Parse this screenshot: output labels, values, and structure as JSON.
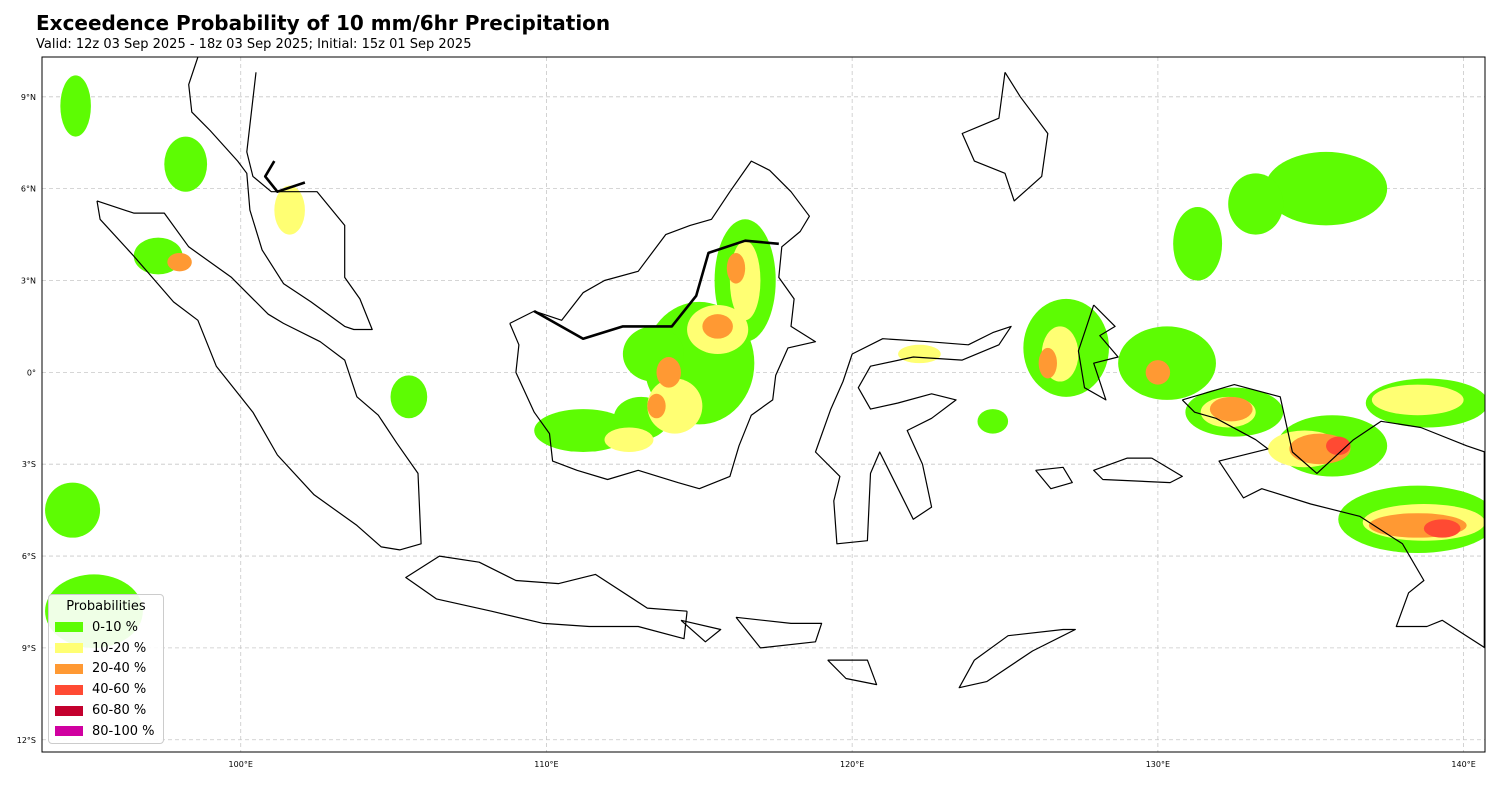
{
  "title": "Exceedence Probability of 10 mm/6hr Precipitation",
  "subtitle": "Valid: 12z 03 Sep 2025 - 18z 03 Sep 2025; Initial: 15z 01 Sep 2025",
  "map": {
    "extent": {
      "lon_min": 93.5,
      "lon_max": 140.7,
      "lat_min": -12.4,
      "lat_max": 10.3
    },
    "grid": true,
    "lat_ticks": [
      {
        "value": 9,
        "label": "9°N"
      },
      {
        "value": 6,
        "label": "6°N"
      },
      {
        "value": 3,
        "label": "3°N"
      },
      {
        "value": 0,
        "label": "0°"
      },
      {
        "value": -3,
        "label": "3°S"
      },
      {
        "value": -6,
        "label": "6°S"
      },
      {
        "value": -9,
        "label": "9°S"
      },
      {
        "value": -12,
        "label": "12°S"
      }
    ],
    "lon_ticks": [
      {
        "value": 100,
        "label": "100°E"
      },
      {
        "value": 110,
        "label": "110°E"
      },
      {
        "value": 120,
        "label": "120°E"
      },
      {
        "value": 130,
        "label": "130°E"
      },
      {
        "value": 140,
        "label": "140°E"
      }
    ],
    "coastlines": [
      [
        [
          95.3,
          5.6
        ],
        [
          96.5,
          5.2
        ],
        [
          97.5,
          5.2
        ],
        [
          98.3,
          4.1
        ],
        [
          99.7,
          3.1
        ],
        [
          100.9,
          1.9
        ],
        [
          101.4,
          1.6
        ],
        [
          102.6,
          1.0
        ],
        [
          103.4,
          0.4
        ],
        [
          103.8,
          -0.8
        ],
        [
          104.5,
          -1.4
        ],
        [
          105.1,
          -2.3
        ],
        [
          105.8,
          -3.3
        ],
        [
          105.9,
          -5.6
        ],
        [
          105.2,
          -5.8
        ],
        [
          104.6,
          -5.7
        ],
        [
          103.8,
          -5.0
        ],
        [
          102.4,
          -4.0
        ],
        [
          101.2,
          -2.7
        ],
        [
          100.4,
          -1.3
        ],
        [
          99.2,
          0.2
        ],
        [
          98.6,
          1.7
        ],
        [
          97.8,
          2.3
        ],
        [
          96.5,
          3.8
        ],
        [
          95.4,
          5.0
        ],
        [
          95.3,
          5.6
        ]
      ],
      [
        [
          100.5,
          9.8
        ],
        [
          100.2,
          7.2
        ],
        [
          100.4,
          6.4
        ],
        [
          101.0,
          5.9
        ],
        [
          101.7,
          5.9
        ],
        [
          102.5,
          5.9
        ],
        [
          103.4,
          4.8
        ],
        [
          103.4,
          3.1
        ],
        [
          103.9,
          2.4
        ],
        [
          104.3,
          1.4
        ],
        [
          103.7,
          1.4
        ],
        [
          103.4,
          1.5
        ],
        [
          102.3,
          2.3
        ],
        [
          101.4,
          2.9
        ],
        [
          100.7,
          4.0
        ],
        [
          100.3,
          5.3
        ],
        [
          100.2,
          6.5
        ],
        [
          99.9,
          6.9
        ],
        [
          99.0,
          7.9
        ],
        [
          98.4,
          8.5
        ],
        [
          98.3,
          9.4
        ],
        [
          98.6,
          10.3
        ]
      ],
      [
        [
          108.8,
          1.6
        ],
        [
          109.6,
          2.0
        ],
        [
          110.5,
          1.7
        ],
        [
          111.2,
          2.6
        ],
        [
          111.9,
          3.0
        ],
        [
          113.0,
          3.3
        ],
        [
          113.9,
          4.5
        ],
        [
          114.7,
          4.8
        ],
        [
          115.4,
          5.0
        ],
        [
          116.0,
          5.9
        ],
        [
          116.7,
          6.9
        ],
        [
          117.3,
          6.6
        ],
        [
          118.0,
          5.9
        ],
        [
          118.6,
          5.1
        ],
        [
          118.3,
          4.6
        ],
        [
          117.7,
          4.1
        ],
        [
          117.6,
          3.1
        ],
        [
          118.1,
          2.4
        ],
        [
          118.0,
          1.5
        ],
        [
          118.8,
          1.0
        ],
        [
          117.9,
          0.8
        ],
        [
          117.5,
          -0.1
        ],
        [
          117.4,
          -0.9
        ],
        [
          116.7,
          -1.4
        ],
        [
          116.3,
          -2.4
        ],
        [
          116.0,
          -3.4
        ],
        [
          115.0,
          -3.8
        ],
        [
          114.3,
          -3.6
        ],
        [
          113.0,
          -3.2
        ],
        [
          112.0,
          -3.5
        ],
        [
          111.0,
          -3.2
        ],
        [
          110.2,
          -2.9
        ],
        [
          110.1,
          -2.0
        ],
        [
          109.6,
          -1.3
        ],
        [
          109.0,
          0.0
        ],
        [
          109.1,
          0.9
        ],
        [
          108.8,
          1.6
        ]
      ],
      [
        [
          120.0,
          0.6
        ],
        [
          121.0,
          1.1
        ],
        [
          122.5,
          1.0
        ],
        [
          123.8,
          0.9
        ],
        [
          124.6,
          1.3
        ],
        [
          125.2,
          1.5
        ],
        [
          124.8,
          0.9
        ],
        [
          123.6,
          0.4
        ],
        [
          122.0,
          0.5
        ],
        [
          120.6,
          0.2
        ],
        [
          120.2,
          -0.5
        ],
        [
          120.6,
          -1.2
        ],
        [
          121.5,
          -1.0
        ],
        [
          122.6,
          -0.7
        ],
        [
          123.4,
          -0.9
        ],
        [
          122.6,
          -1.5
        ],
        [
          121.8,
          -1.9
        ],
        [
          122.3,
          -3.0
        ],
        [
          122.6,
          -4.4
        ],
        [
          122.0,
          -4.8
        ],
        [
          121.6,
          -4.0
        ],
        [
          121.1,
          -3.0
        ],
        [
          120.9,
          -2.6
        ],
        [
          120.6,
          -3.3
        ],
        [
          120.5,
          -5.5
        ],
        [
          119.5,
          -5.6
        ],
        [
          119.4,
          -4.2
        ],
        [
          119.6,
          -3.4
        ],
        [
          118.8,
          -2.6
        ],
        [
          119.3,
          -1.2
        ],
        [
          119.7,
          -0.3
        ],
        [
          120.0,
          0.6
        ]
      ],
      [
        [
          114.6,
          -7.8
        ],
        [
          113.3,
          -7.7
        ],
        [
          111.6,
          -6.6
        ],
        [
          110.4,
          -6.9
        ],
        [
          109.0,
          -6.8
        ],
        [
          107.8,
          -6.2
        ],
        [
          106.5,
          -6.0
        ],
        [
          105.4,
          -6.7
        ],
        [
          106.4,
          -7.4
        ],
        [
          108.2,
          -7.8
        ],
        [
          109.9,
          -8.2
        ],
        [
          111.4,
          -8.3
        ],
        [
          113.0,
          -8.3
        ],
        [
          114.5,
          -8.7
        ],
        [
          114.6,
          -7.8
        ]
      ],
      [
        [
          130.8,
          -0.9
        ],
        [
          132.5,
          -0.4
        ],
        [
          134.0,
          -0.8
        ],
        [
          134.4,
          -2.6
        ],
        [
          135.2,
          -3.3
        ],
        [
          136.4,
          -2.2
        ],
        [
          137.3,
          -1.6
        ],
        [
          138.6,
          -1.8
        ],
        [
          140.1,
          -2.4
        ],
        [
          140.7,
          -2.6
        ],
        [
          140.7,
          -9.0
        ],
        [
          139.3,
          -8.1
        ],
        [
          138.8,
          -8.3
        ],
        [
          137.8,
          -8.3
        ],
        [
          138.2,
          -7.2
        ],
        [
          138.7,
          -6.8
        ],
        [
          138.0,
          -5.6
        ],
        [
          136.6,
          -4.7
        ],
        [
          135.0,
          -4.3
        ],
        [
          133.4,
          -3.8
        ],
        [
          132.8,
          -4.1
        ],
        [
          132.0,
          -2.9
        ],
        [
          133.6,
          -2.5
        ],
        [
          133.2,
          -2.2
        ],
        [
          131.9,
          -1.5
        ],
        [
          131.2,
          -1.3
        ],
        [
          130.8,
          -0.9
        ]
      ],
      [
        [
          124.0,
          -9.4
        ],
        [
          125.1,
          -8.6
        ],
        [
          126.9,
          -8.4
        ],
        [
          127.3,
          -8.4
        ],
        [
          125.9,
          -9.1
        ],
        [
          124.4,
          -10.1
        ],
        [
          123.5,
          -10.3
        ],
        [
          124.0,
          -9.4
        ]
      ],
      [
        [
          127.9,
          2.2
        ],
        [
          128.6,
          1.5
        ],
        [
          128.1,
          1.2
        ],
        [
          128.7,
          0.5
        ],
        [
          127.9,
          0.3
        ],
        [
          128.3,
          -0.9
        ],
        [
          127.6,
          -0.5
        ],
        [
          127.4,
          0.7
        ],
        [
          127.7,
          1.6
        ],
        [
          127.9,
          2.2
        ]
      ],
      [
        [
          125.0,
          9.8
        ],
        [
          125.5,
          9.0
        ],
        [
          126.4,
          7.8
        ],
        [
          126.2,
          6.4
        ],
        [
          125.3,
          5.6
        ],
        [
          125.0,
          6.5
        ],
        [
          124.0,
          6.9
        ],
        [
          123.6,
          7.8
        ],
        [
          124.8,
          8.3
        ],
        [
          125.0,
          9.8
        ]
      ],
      [
        [
          116.2,
          -8.0
        ],
        [
          118.0,
          -8.2
        ],
        [
          119.0,
          -8.2
        ],
        [
          118.8,
          -8.8
        ],
        [
          117.0,
          -9.0
        ],
        [
          116.2,
          -8.0
        ]
      ],
      [
        [
          119.2,
          -9.4
        ],
        [
          120.5,
          -9.4
        ],
        [
          120.8,
          -10.2
        ],
        [
          119.8,
          -10.0
        ],
        [
          119.2,
          -9.4
        ]
      ],
      [
        [
          129.8,
          -2.8
        ],
        [
          130.8,
          -3.4
        ],
        [
          130.4,
          -3.6
        ],
        [
          128.2,
          -3.5
        ],
        [
          127.9,
          -3.2
        ],
        [
          129.0,
          -2.8
        ],
        [
          129.8,
          -2.8
        ]
      ],
      [
        [
          126.0,
          -3.2
        ],
        [
          126.9,
          -3.1
        ],
        [
          127.2,
          -3.6
        ],
        [
          126.5,
          -3.8
        ],
        [
          126.0,
          -3.2
        ]
      ],
      [
        [
          114.4,
          -8.1
        ],
        [
          115.7,
          -8.4
        ],
        [
          115.2,
          -8.8
        ],
        [
          114.4,
          -8.1
        ]
      ]
    ],
    "borders": [
      [
        [
          109.6,
          2.0
        ],
        [
          111.2,
          1.1
        ],
        [
          112.5,
          1.5
        ],
        [
          114.1,
          1.5
        ],
        [
          114.9,
          2.5
        ],
        [
          115.3,
          3.9
        ],
        [
          116.5,
          4.3
        ],
        [
          117.6,
          4.2
        ]
      ],
      [
        [
          101.1,
          6.9
        ],
        [
          100.8,
          6.4
        ],
        [
          101.2,
          5.9
        ],
        [
          102.1,
          6.2
        ]
      ],
      [
        [
          140.7,
          -2.6
        ],
        [
          140.7,
          -9.0
        ]
      ]
    ],
    "legend": {
      "title": "Probabilities",
      "items": [
        {
          "label": "0-10 %",
          "color": "#5dfc03"
        },
        {
          "label": "10-20 %",
          "color": "#ffff73"
        },
        {
          "label": "20-40 %",
          "color": "#ff9933"
        },
        {
          "label": "40-60 %",
          "color": "#ff4a33"
        },
        {
          "label": "60-80 %",
          "color": "#c3002e"
        },
        {
          "label": "80-100 %",
          "color": "#d000a0"
        }
      ]
    },
    "precip_areas": [
      {
        "cat": 0,
        "lon": 111.2,
        "lat": -1.9,
        "rx": 1.6,
        "ry": 0.7
      },
      {
        "cat": 0,
        "lon": 113.1,
        "lat": -1.5,
        "rx": 0.9,
        "ry": 0.7
      },
      {
        "cat": 0,
        "lon": 115.0,
        "lat": 0.3,
        "rx": 1.8,
        "ry": 2.0
      },
      {
        "cat": 0,
        "lon": 116.5,
        "lat": 3.0,
        "rx": 1.0,
        "ry": 2.0
      },
      {
        "cat": 0,
        "lon": 113.5,
        "lat": 0.6,
        "rx": 1.0,
        "ry": 0.9
      },
      {
        "cat": 0,
        "lon": 105.5,
        "lat": -0.8,
        "rx": 0.6,
        "ry": 0.7
      },
      {
        "cat": 0,
        "lon": 97.3,
        "lat": 3.8,
        "rx": 0.8,
        "ry": 0.6
      },
      {
        "cat": 0,
        "lon": 98.2,
        "lat": 6.8,
        "rx": 0.7,
        "ry": 0.9
      },
      {
        "cat": 0,
        "lon": 94.6,
        "lat": 8.7,
        "rx": 0.5,
        "ry": 1.0
      },
      {
        "cat": 0,
        "lon": 94.5,
        "lat": -4.5,
        "rx": 0.9,
        "ry": 0.9
      },
      {
        "cat": 0,
        "lon": 95.2,
        "lat": -7.8,
        "rx": 1.6,
        "ry": 1.2
      },
      {
        "cat": 0,
        "lon": 127.0,
        "lat": 0.8,
        "rx": 1.4,
        "ry": 1.6
      },
      {
        "cat": 0,
        "lon": 130.3,
        "lat": 0.3,
        "rx": 1.6,
        "ry": 1.2
      },
      {
        "cat": 0,
        "lon": 132.5,
        "lat": -1.3,
        "rx": 1.6,
        "ry": 0.8
      },
      {
        "cat": 0,
        "lon": 135.7,
        "lat": -2.4,
        "rx": 1.8,
        "ry": 1.0
      },
      {
        "cat": 0,
        "lon": 138.5,
        "lat": -4.8,
        "rx": 2.6,
        "ry": 1.1
      },
      {
        "cat": 0,
        "lon": 138.8,
        "lat": -1.0,
        "rx": 2.0,
        "ry": 0.8
      },
      {
        "cat": 0,
        "lon": 135.5,
        "lat": 6.0,
        "rx": 2.0,
        "ry": 1.2
      },
      {
        "cat": 0,
        "lon": 133.2,
        "lat": 5.5,
        "rx": 0.9,
        "ry": 1.0
      },
      {
        "cat": 0,
        "lon": 124.6,
        "lat": -1.6,
        "rx": 0.5,
        "ry": 0.4
      },
      {
        "cat": 0,
        "lon": 131.3,
        "lat": 4.2,
        "rx": 0.8,
        "ry": 1.2
      },
      {
        "cat": 1,
        "lon": 116.5,
        "lat": 3.0,
        "rx": 0.5,
        "ry": 1.3
      },
      {
        "cat": 1,
        "lon": 115.6,
        "lat": 1.4,
        "rx": 1.0,
        "ry": 0.8
      },
      {
        "cat": 1,
        "lon": 114.2,
        "lat": -1.1,
        "rx": 0.9,
        "ry": 0.9
      },
      {
        "cat": 1,
        "lon": 112.7,
        "lat": -2.2,
        "rx": 0.8,
        "ry": 0.4
      },
      {
        "cat": 1,
        "lon": 101.6,
        "lat": 5.3,
        "rx": 0.5,
        "ry": 0.8
      },
      {
        "cat": 1,
        "lon": 126.8,
        "lat": 0.6,
        "rx": 0.6,
        "ry": 0.9
      },
      {
        "cat": 1,
        "lon": 132.3,
        "lat": -1.3,
        "rx": 0.9,
        "ry": 0.5
      },
      {
        "cat": 1,
        "lon": 138.7,
        "lat": -4.9,
        "rx": 2.0,
        "ry": 0.6
      },
      {
        "cat": 1,
        "lon": 138.5,
        "lat": -0.9,
        "rx": 1.5,
        "ry": 0.5
      },
      {
        "cat": 1,
        "lon": 134.8,
        "lat": -2.5,
        "rx": 1.2,
        "ry": 0.6
      },
      {
        "cat": 1,
        "lon": 122.2,
        "lat": 0.6,
        "rx": 0.7,
        "ry": 0.3
      },
      {
        "cat": 2,
        "lon": 116.2,
        "lat": 3.4,
        "rx": 0.3,
        "ry": 0.5
      },
      {
        "cat": 2,
        "lon": 115.6,
        "lat": 1.5,
        "rx": 0.5,
        "ry": 0.4
      },
      {
        "cat": 2,
        "lon": 114.0,
        "lat": 0.0,
        "rx": 0.4,
        "ry": 0.5
      },
      {
        "cat": 2,
        "lon": 113.6,
        "lat": -1.1,
        "rx": 0.3,
        "ry": 0.4
      },
      {
        "cat": 2,
        "lon": 126.4,
        "lat": 0.3,
        "rx": 0.3,
        "ry": 0.5
      },
      {
        "cat": 2,
        "lon": 132.4,
        "lat": -1.2,
        "rx": 0.7,
        "ry": 0.4
      },
      {
        "cat": 2,
        "lon": 135.3,
        "lat": -2.5,
        "rx": 1.0,
        "ry": 0.5
      },
      {
        "cat": 2,
        "lon": 138.5,
        "lat": -5.0,
        "rx": 1.6,
        "ry": 0.4
      },
      {
        "cat": 2,
        "lon": 130.0,
        "lat": 0.0,
        "rx": 0.4,
        "ry": 0.4
      },
      {
        "cat": 2,
        "lon": 98.0,
        "lat": 3.6,
        "rx": 0.4,
        "ry": 0.3
      },
      {
        "cat": 3,
        "lon": 139.3,
        "lat": -5.1,
        "rx": 0.6,
        "ry": 0.3
      },
      {
        "cat": 3,
        "lon": 135.9,
        "lat": -2.4,
        "rx": 0.4,
        "ry": 0.3
      }
    ]
  }
}
